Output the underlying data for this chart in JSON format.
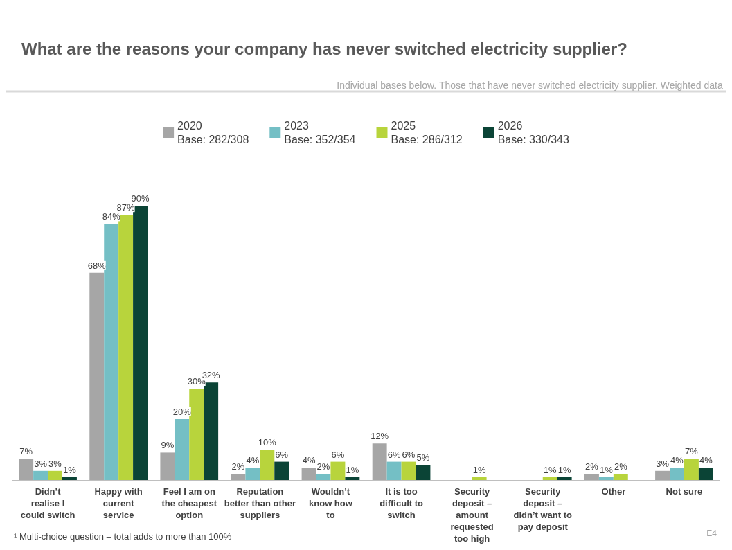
{
  "chart_data": {
    "type": "bar",
    "title": "What are the reasons your company has never switched electricity supplier?",
    "subtitle": "Individual bases below. Those that have never switched electricity supplier. Weighted data",
    "categories": [
      "Didn’t\nrealise I\ncould switch",
      "Happy with\ncurrent\nservice",
      "Feel I am on\nthe cheapest\noption",
      "Reputation\nbetter than other\nsuppliers",
      "Wouldn’t\nknow how\nto",
      "It is too\ndifficult to\nswitch",
      "Security\ndeposit –\namount\nrequested\ntoo high",
      "Security\ndeposit –\ndidn’t want to\npay deposit",
      "Other",
      "Not sure"
    ],
    "series": [
      {
        "name": "2020\nBase: 282/308",
        "color": "#a6a6a6",
        "values": [
          7,
          68,
          9,
          2,
          4,
          12,
          null,
          null,
          2,
          3
        ],
        "value_labels": [
          "7%",
          "68%",
          "9%",
          "2%",
          "4%",
          "12%",
          null,
          null,
          "2%",
          "3%"
        ]
      },
      {
        "name": "2023\nBase: 352/354",
        "color": "#74bfc5",
        "values": [
          3,
          84,
          20,
          4,
          2,
          6,
          null,
          null,
          1,
          4
        ],
        "value_labels": [
          "3%",
          "84%",
          "20%",
          "4%",
          "2%",
          "6%",
          null,
          null,
          "1%",
          "4%"
        ]
      },
      {
        "name": "2025\nBase: 286/312",
        "color": "#b8d43c",
        "values": [
          3,
          87,
          30,
          10,
          6,
          6,
          1,
          1,
          2,
          7
        ],
        "value_labels": [
          "3%",
          "87%",
          "30%",
          "10%",
          "6%",
          "6%",
          "1%",
          "1%",
          "2%",
          "7%"
        ]
      },
      {
        "name": "2026\nBase: 330/343",
        "color": "#0b4436",
        "values": [
          1,
          90,
          32,
          6,
          1,
          5,
          null,
          1,
          null,
          4
        ],
        "value_labels": [
          "1%",
          "90%",
          "32%",
          "6%",
          "1%",
          "5%",
          null,
          "1%",
          null,
          "4%"
        ]
      }
    ],
    "legend": "top",
    "annotations": [
      "¹ Multi-choice question – total adds to more than 100%",
      "E4"
    ]
  }
}
